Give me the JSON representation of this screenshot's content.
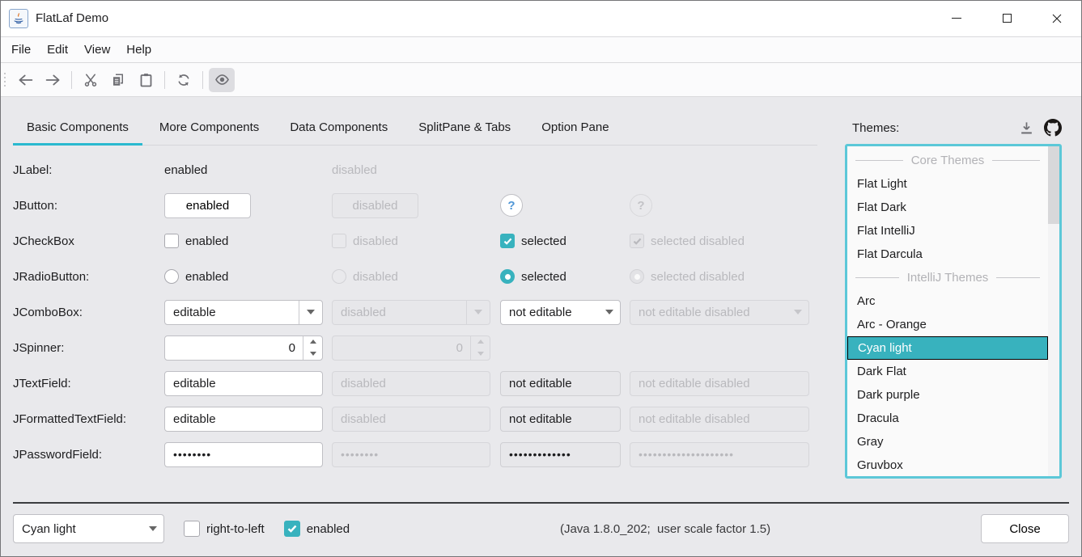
{
  "colors": {
    "accent": "#38b2be",
    "focus_border": "#5cc8d8",
    "tab_underline": "#2ab9cf",
    "help_blue": "#4f96d6",
    "selection_text": "#ffffff"
  },
  "window": {
    "title": "FlatLaf Demo",
    "controls": [
      "minimize",
      "maximize",
      "close"
    ]
  },
  "menu": {
    "items": [
      "File",
      "Edit",
      "View",
      "Help"
    ]
  },
  "toolbar": {
    "icons": [
      "back",
      "forward",
      "cut",
      "copy",
      "paste",
      "refresh",
      "show"
    ]
  },
  "tabs": {
    "selected": "Basic Components",
    "items": [
      {
        "label": "Basic Components"
      },
      {
        "label": "More Components"
      },
      {
        "label": "Data Components"
      },
      {
        "label": "SplitPane & Tabs"
      },
      {
        "label": "Option Pane"
      }
    ]
  },
  "components": {
    "jlabel": {
      "label": "JLabel:",
      "enabled": "enabled",
      "disabled": "disabled"
    },
    "jbutton": {
      "label": "JButton:",
      "enabled": "enabled",
      "disabled": "disabled",
      "help": "?"
    },
    "jcheckbox": {
      "label": "JCheckBox",
      "enabled": "enabled",
      "disabled": "disabled",
      "selected": "selected",
      "selected_disabled": "selected disabled"
    },
    "jradiobutton": {
      "label": "JRadioButton:",
      "enabled": "enabled",
      "disabled": "disabled",
      "selected": "selected",
      "selected_disabled": "selected disabled"
    },
    "jcombobox": {
      "label": "JComboBox:",
      "editable": "editable",
      "disabled": "disabled",
      "not_editable": "not editable",
      "not_editable_disabled": "not editable disabled"
    },
    "jspinner": {
      "label": "JSpinner:",
      "value": "0",
      "disabled_value": "0"
    },
    "jtextfield": {
      "label": "JTextField:",
      "editable": "editable",
      "disabled": "disabled",
      "not_editable": "not editable",
      "not_editable_disabled": "not editable disabled"
    },
    "jformattedtextfield": {
      "label": "JFormattedTextField:",
      "editable": "editable",
      "disabled": "disabled",
      "not_editable": "not editable",
      "not_editable_disabled": "not editable disabled"
    },
    "jpasswordfield": {
      "label": "JPasswordField:",
      "p1": "••••••••",
      "p2": "••••••••",
      "p3": "•••••••••••••",
      "p4": "••••••••••••••••••••"
    }
  },
  "themes": {
    "label": "Themes:",
    "icons": [
      "download",
      "github"
    ],
    "list": [
      {
        "type": "header",
        "label": "Core Themes"
      },
      {
        "type": "item",
        "label": "Flat Light"
      },
      {
        "type": "item",
        "label": "Flat Dark"
      },
      {
        "type": "item",
        "label": "Flat IntelliJ"
      },
      {
        "type": "item",
        "label": "Flat Darcula"
      },
      {
        "type": "header",
        "label": "IntelliJ Themes"
      },
      {
        "type": "item",
        "label": "Arc"
      },
      {
        "type": "item",
        "label": "Arc - Orange"
      },
      {
        "type": "item",
        "label": "Cyan light",
        "selected": true
      },
      {
        "type": "item",
        "label": "Dark Flat"
      },
      {
        "type": "item",
        "label": "Dark purple"
      },
      {
        "type": "item",
        "label": "Dracula"
      },
      {
        "type": "item",
        "label": "Gray"
      },
      {
        "type": "item",
        "label": "Gruvbox"
      }
    ]
  },
  "bottom": {
    "theme_selector_value": "Cyan light",
    "rtl_label": "right-to-left",
    "enabled_label": "enabled",
    "status": "(Java 1.8.0_202;  user scale factor 1.5)",
    "close_label": "Close"
  }
}
